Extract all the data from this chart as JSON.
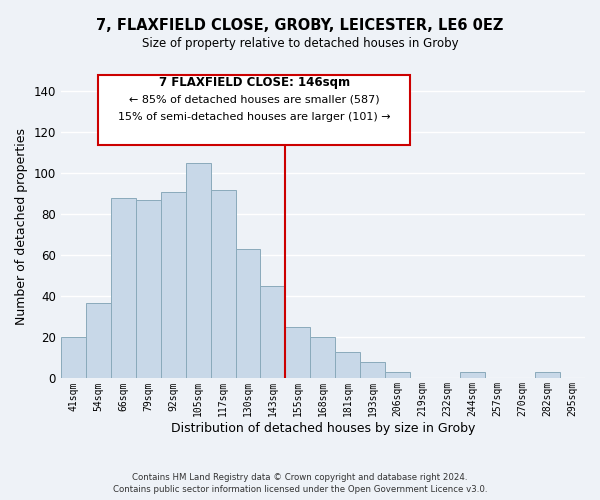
{
  "title": "7, FLAXFIELD CLOSE, GROBY, LEICESTER, LE6 0EZ",
  "subtitle": "Size of property relative to detached houses in Groby",
  "xlabel": "Distribution of detached houses by size in Groby",
  "ylabel": "Number of detached properties",
  "bar_labels": [
    "41sqm",
    "54sqm",
    "66sqm",
    "79sqm",
    "92sqm",
    "105sqm",
    "117sqm",
    "130sqm",
    "143sqm",
    "155sqm",
    "168sqm",
    "181sqm",
    "193sqm",
    "206sqm",
    "219sqm",
    "232sqm",
    "244sqm",
    "257sqm",
    "270sqm",
    "282sqm",
    "295sqm"
  ],
  "bar_values": [
    20,
    37,
    88,
    87,
    91,
    105,
    92,
    63,
    45,
    25,
    20,
    13,
    8,
    3,
    0,
    0,
    3,
    0,
    0,
    3,
    0
  ],
  "bar_color": "#c8d8e8",
  "bar_edge_color": "#8aaabb",
  "vline_x": 8.5,
  "vline_color": "#cc0000",
  "ylim": [
    0,
    148
  ],
  "yticks": [
    0,
    20,
    40,
    60,
    80,
    100,
    120,
    140
  ],
  "annotation_title": "7 FLAXFIELD CLOSE: 146sqm",
  "annotation_line1": "← 85% of detached houses are smaller (587)",
  "annotation_line2": "15% of semi-detached houses are larger (101) →",
  "annotation_box_color": "#ffffff",
  "annotation_box_edge": "#cc0000",
  "footer1": "Contains HM Land Registry data © Crown copyright and database right 2024.",
  "footer2": "Contains public sector information licensed under the Open Government Licence v3.0.",
  "background_color": "#eef2f7",
  "grid_color": "#ffffff"
}
